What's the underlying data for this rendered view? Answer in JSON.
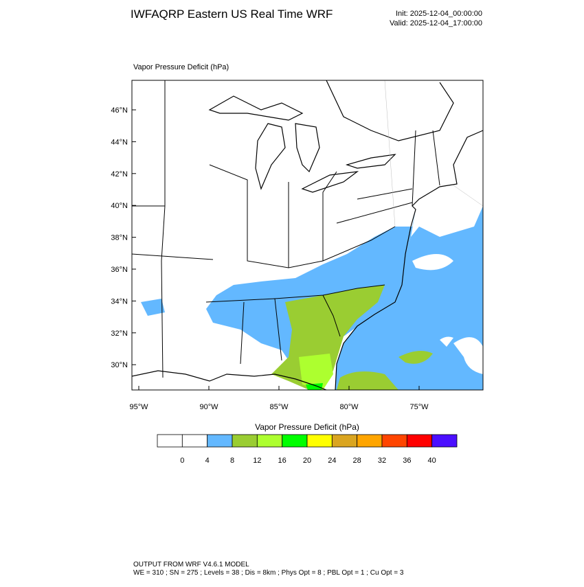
{
  "header": {
    "title": "IWFAQRP Eastern US Real Time WRF",
    "init": "Init: 2025-12-04_00:00:00",
    "valid": "Valid: 2025-12-04_17:00:00"
  },
  "map": {
    "title": "Vapor Pressure Deficit   (hPa)",
    "lat_ticks": [
      "46°N",
      "44°N",
      "42°N",
      "40°N",
      "38°N",
      "36°N",
      "34°N",
      "32°N",
      "30°N"
    ],
    "lon_ticks": [
      "95°W",
      "90°W",
      "85°W",
      "80°W",
      "75°W"
    ]
  },
  "colorbar": {
    "title": "Vapor Pressure Deficit   (hPa)",
    "levels": [
      0,
      4,
      8,
      12,
      16,
      20,
      24,
      28,
      32,
      36,
      40
    ],
    "colors": [
      "#ffffff",
      "#ffffff",
      "#63b8ff",
      "#9acd32",
      "#adff2f",
      "#00ff00",
      "#ffff00",
      "#daa520",
      "#ffa500",
      "#ff4500",
      "#ff0000",
      "#4b0fff"
    ]
  },
  "footer": {
    "line1": "OUTPUT FROM WRF V4.6.1 MODEL",
    "line2": "WE = 310 ; SN = 275 ; Levels = 38 ; Dis = 8km ; Phys Opt = 8 ; PBL Opt = 1 ; Cu Opt = 3"
  }
}
